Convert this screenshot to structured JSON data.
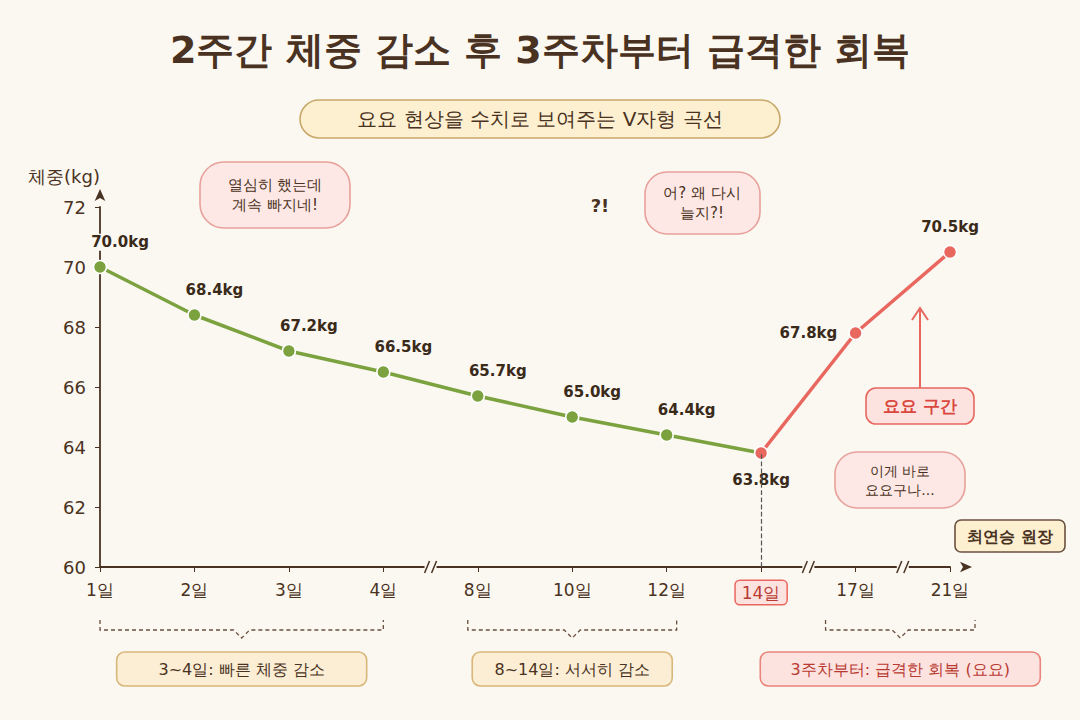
{
  "chart_data": {
    "type": "line",
    "title": "2주간 체중 감소 후 3주차부터 급격한 회복",
    "subtitle": "요요 현상을 수치로 보여주는 V자형 곡선",
    "y_label": "체중(kg)",
    "categories": [
      "1일",
      "2일",
      "3일",
      "4일",
      "8일",
      "10일",
      "12일",
      "14일",
      "17일",
      "21일"
    ],
    "series": [
      {
        "color": "#7ba23f",
        "values": [
          70.0,
          68.4,
          67.2,
          66.5,
          65.7,
          65.0,
          64.4,
          63.8,
          null,
          null
        ],
        "value_labels": [
          "70.0kg",
          "68.4kg",
          "67.2kg",
          "66.5kg",
          "65.7kg",
          "65.0kg",
          "64.4kg",
          "63.8kg",
          null,
          null
        ]
      },
      {
        "color": "#e8675f",
        "values": [
          null,
          null,
          null,
          null,
          null,
          null,
          null,
          63.8,
          67.8,
          70.5
        ],
        "value_labels": [
          null,
          null,
          null,
          null,
          null,
          null,
          null,
          null,
          "67.8kg",
          "70.5kg"
        ]
      }
    ],
    "ylim": [
      60,
      72
    ],
    "yticks": [
      60,
      62,
      64,
      66,
      68,
      70,
      72
    ],
    "grid": false,
    "data_labels": true,
    "marker": "circle",
    "annotations": [
      "열심히 했는데\n계속 빠지네!",
      "?!",
      "어? 왜 다시\n늘지?!",
      "요요 구간",
      "이게 바로\n요요구나...",
      "최연승 원장",
      "3~4일: 빠른 체중 감소",
      "8~14일: 서서히 감소",
      "3주차부터: 급격한 회복 (요요)"
    ]
  }
}
